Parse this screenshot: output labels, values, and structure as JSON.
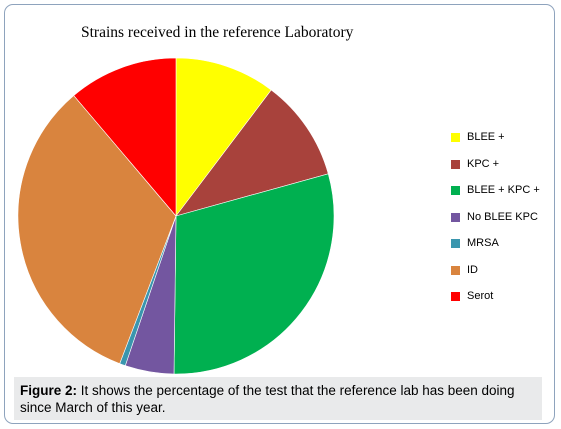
{
  "chart_data": {
    "type": "pie",
    "title": "Strains received in the reference Laboratory",
    "slices": [
      {
        "label": "BLEE +",
        "value": 10.3,
        "color": "#ffff00"
      },
      {
        "label": "KPC +",
        "value": 10.4,
        "color": "#a8423c"
      },
      {
        "label": "BLEE + KPC +",
        "value": 29.5,
        "color": "#00b050"
      },
      {
        "label": "No BLEE KPC",
        "value": 5.0,
        "color": "#7356a0"
      },
      {
        "label": "MRSA",
        "value": 0.6,
        "color": "#3a96ae"
      },
      {
        "label": "ID",
        "value": 33.0,
        "color": "#d9843e"
      },
      {
        "label": "Serot",
        "value": 11.2,
        "color": "#ff0000"
      }
    ],
    "legend_position": "right"
  },
  "caption": {
    "label": "Figure 2:",
    "text": " It shows the percentage of the test that the reference lab has been doing since March of this year."
  }
}
